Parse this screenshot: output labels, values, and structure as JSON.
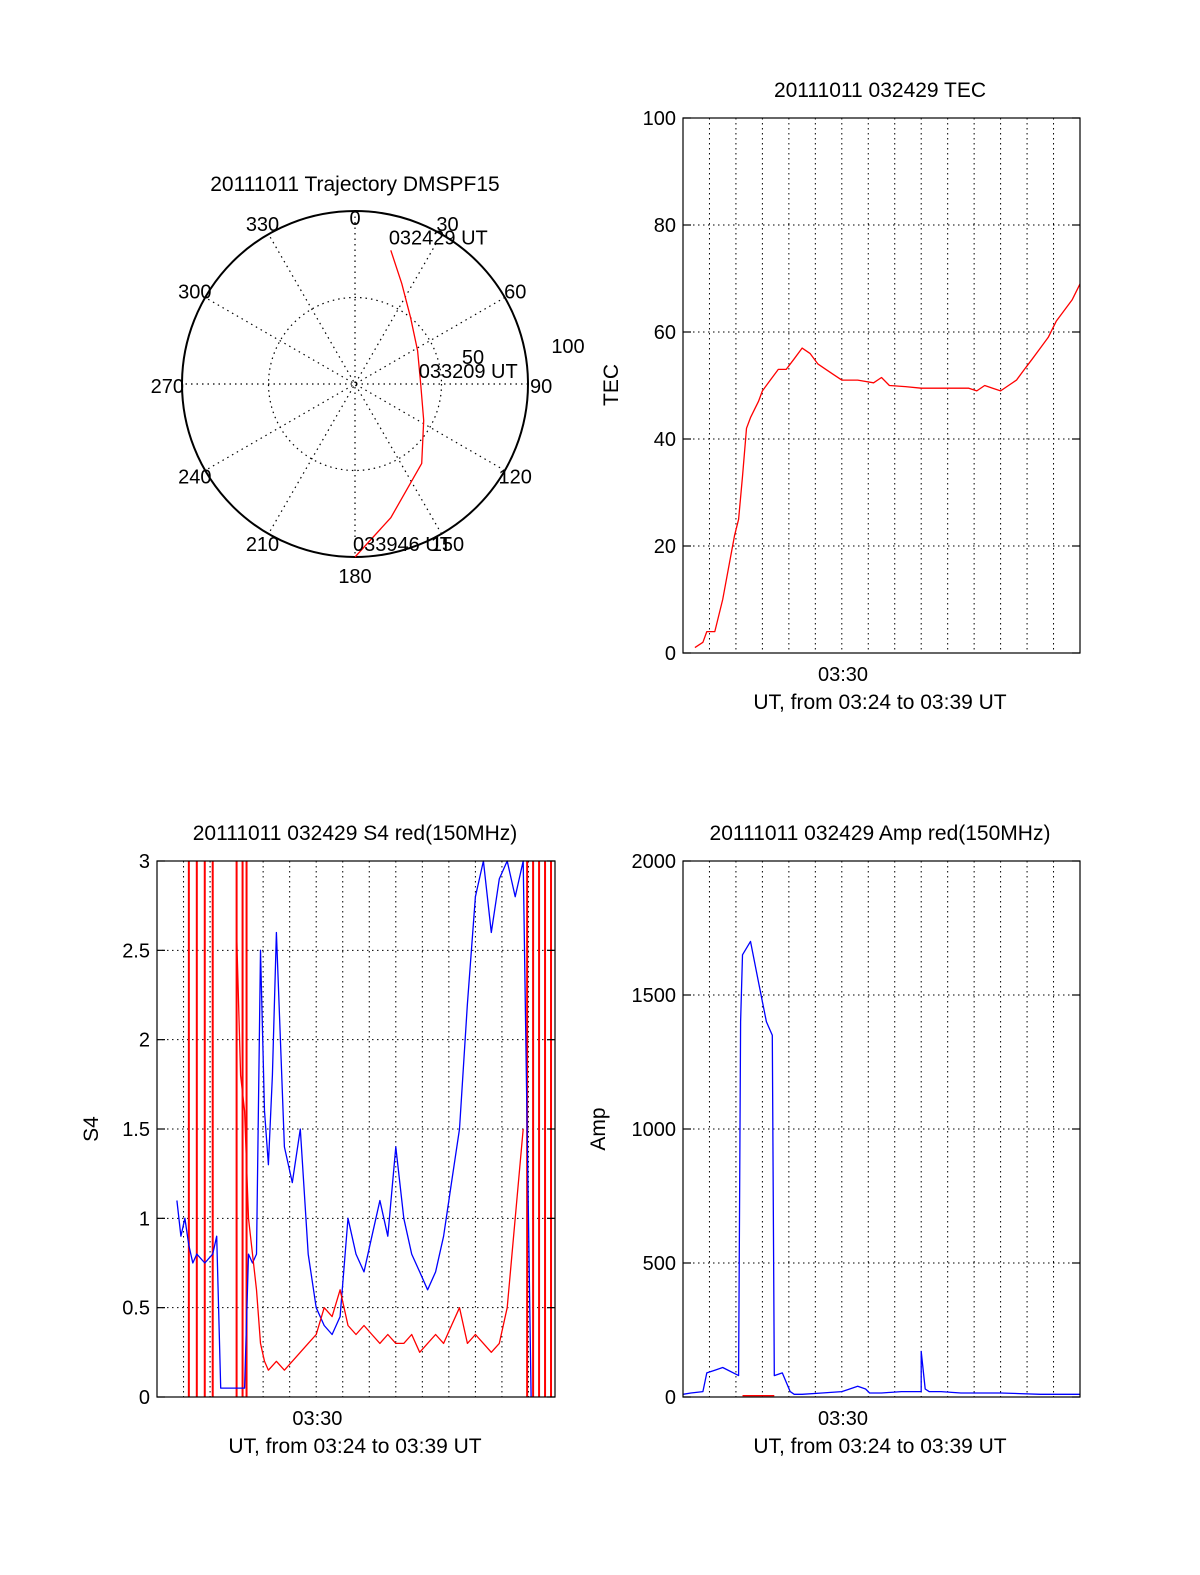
{
  "colors": {
    "red": "#ff0000",
    "blue": "#0000ff",
    "axis": "#000000",
    "grid": "#000000"
  },
  "chart_data": [
    {
      "id": "trajectory",
      "type": "polar",
      "title": "20111011 Trajectory DMSPF15",
      "azimuth_labels": [
        "0",
        "30",
        "60",
        "90",
        "120",
        "150",
        "180",
        "210",
        "240",
        "270",
        "300",
        "330"
      ],
      "radial_labels": [
        "50",
        "100"
      ],
      "rlim": [
        0,
        100
      ],
      "grid": true,
      "track_series": {
        "color": "#ff0000",
        "points": [
          {
            "az": 15,
            "r": 80
          },
          {
            "az": 25,
            "r": 64
          },
          {
            "az": 40,
            "r": 50
          },
          {
            "az": 62,
            "r": 41
          },
          {
            "az": 90,
            "r": 38
          },
          {
            "az": 118,
            "r": 45
          },
          {
            "az": 140,
            "r": 60
          },
          {
            "az": 165,
            "r": 80
          },
          {
            "az": 180,
            "r": 100
          }
        ]
      },
      "annotations": [
        {
          "text": "032429 UT",
          "az": 15,
          "r": 80
        },
        {
          "text": "033209 UT",
          "az": 90,
          "r": 38
        },
        {
          "text": "033946 UT",
          "az": 180,
          "r": 100
        }
      ]
    },
    {
      "id": "tec",
      "type": "line",
      "title": "20111011 032429 TEC",
      "xlabel": "UT, from 03:24 to 03:39 UT",
      "ylabel": "TEC",
      "xlim": [
        0,
        1
      ],
      "ylim": [
        0,
        100
      ],
      "yticks": [
        0,
        20,
        40,
        60,
        80,
        100
      ],
      "xtick_labels": [
        {
          "x": 0.403,
          "label": "03:30"
        }
      ],
      "grid": true,
      "series": [
        {
          "color": "#ff0000",
          "x": [
            0.03,
            0.05,
            0.06,
            0.08,
            0.1,
            0.12,
            0.13,
            0.14,
            0.15,
            0.16,
            0.17,
            0.19,
            0.2,
            0.22,
            0.24,
            0.26,
            0.28,
            0.3,
            0.32,
            0.34,
            0.36,
            0.38,
            0.4,
            0.44,
            0.48,
            0.5,
            0.52,
            0.56,
            0.6,
            0.64,
            0.68,
            0.72,
            0.74,
            0.76,
            0.78,
            0.8,
            0.82,
            0.84,
            0.86,
            0.88,
            0.9,
            0.92,
            0.94,
            0.96,
            0.98,
            1.0
          ],
          "y": [
            1,
            2,
            4,
            4,
            10,
            18,
            22,
            25,
            33,
            42,
            44,
            47,
            49,
            51,
            53,
            53,
            55,
            57,
            56,
            54,
            53,
            52,
            51,
            51,
            50.5,
            51.5,
            50,
            49.8,
            49.5,
            49.5,
            49.5,
            49.5,
            49,
            50,
            49.5,
            49,
            50,
            51,
            53,
            55,
            57,
            59,
            62,
            64,
            66,
            69
          ]
        }
      ]
    },
    {
      "id": "s4",
      "type": "line",
      "title": "20111011 032429 S4 red(150MHz)",
      "xlabel": "UT, from 03:24 to 03:39 UT",
      "ylabel": "S4",
      "xlim": [
        0,
        1
      ],
      "ylim": [
        0,
        3
      ],
      "yticks": [
        0,
        0.5,
        1,
        1.5,
        2,
        2.5,
        3
      ],
      "xtick_labels": [
        {
          "x": 0.403,
          "label": "03:30"
        }
      ],
      "grid": true,
      "series": [
        {
          "color": "#0000ff",
          "x": [
            0.05,
            0.06,
            0.07,
            0.08,
            0.09,
            0.1,
            0.12,
            0.14,
            0.15,
            0.16,
            0.17,
            0.18,
            0.185,
            0.19,
            0.22,
            0.23,
            0.24,
            0.25,
            0.26,
            0.27,
            0.28,
            0.29,
            0.3,
            0.32,
            0.34,
            0.36,
            0.38,
            0.4,
            0.42,
            0.44,
            0.46,
            0.48,
            0.5,
            0.52,
            0.54,
            0.56,
            0.58,
            0.6,
            0.62,
            0.64,
            0.66,
            0.68,
            0.7,
            0.72,
            0.74,
            0.76,
            0.78,
            0.8,
            0.82,
            0.84,
            0.86,
            0.88,
            0.9,
            0.92,
            0.94
          ],
          "y": [
            1.1,
            0.9,
            1.0,
            0.85,
            0.75,
            0.8,
            0.75,
            0.8,
            0.9,
            0.05,
            0.05,
            0.05,
            0.05,
            0.05,
            0.05,
            0.8,
            0.75,
            0.8,
            2.5,
            1.6,
            1.3,
            1.8,
            2.6,
            1.4,
            1.2,
            1.5,
            0.8,
            0.5,
            0.4,
            0.35,
            0.45,
            1.0,
            0.8,
            0.7,
            0.9,
            1.1,
            0.9,
            1.4,
            1.0,
            0.8,
            0.7,
            0.6,
            0.7,
            0.9,
            1.2,
            1.5,
            2.2,
            2.8,
            3.0,
            2.6,
            2.9,
            3.0,
            2.8,
            3.0,
            0.0
          ]
        },
        {
          "color": "#ff0000",
          "x": [
            0.2,
            0.21,
            0.22,
            0.23,
            0.24,
            0.25,
            0.26,
            0.27,
            0.28,
            0.3,
            0.32,
            0.34,
            0.36,
            0.38,
            0.4,
            0.42,
            0.44,
            0.46,
            0.48,
            0.5,
            0.52,
            0.54,
            0.56,
            0.58,
            0.6,
            0.62,
            0.64,
            0.66,
            0.68,
            0.7,
            0.72,
            0.74,
            0.76,
            0.78,
            0.8,
            0.82,
            0.84,
            0.86,
            0.88,
            0.9,
            0.92
          ],
          "y": [
            2.6,
            1.8,
            1.6,
            1.0,
            0.8,
            0.6,
            0.3,
            0.2,
            0.15,
            0.2,
            0.15,
            0.2,
            0.25,
            0.3,
            0.35,
            0.5,
            0.45,
            0.6,
            0.4,
            0.35,
            0.4,
            0.35,
            0.3,
            0.35,
            0.3,
            0.3,
            0.35,
            0.25,
            0.3,
            0.35,
            0.3,
            0.4,
            0.5,
            0.3,
            0.35,
            0.3,
            0.25,
            0.3,
            0.5,
            1.0,
            1.5
          ]
        }
      ],
      "red_spikes_x": [
        0.08,
        0.1,
        0.12,
        0.14,
        0.2,
        0.215,
        0.225,
        0.93,
        0.945,
        0.96,
        0.975,
        0.99
      ]
    },
    {
      "id": "amp",
      "type": "line",
      "title": "20111011 032429 Amp red(150MHz)",
      "xlabel": "UT, from 03:24 to 03:39 UT",
      "ylabel": "Amp",
      "xlim": [
        0,
        1
      ],
      "ylim": [
        0,
        2000
      ],
      "yticks": [
        0,
        500,
        1000,
        1500,
        2000
      ],
      "xtick_labels": [
        {
          "x": 0.403,
          "label": "03:30"
        }
      ],
      "grid": true,
      "series": [
        {
          "color": "#0000ff",
          "x": [
            0.0,
            0.02,
            0.05,
            0.06,
            0.08,
            0.1,
            0.14,
            0.145,
            0.15,
            0.17,
            0.19,
            0.21,
            0.225,
            0.23,
            0.25,
            0.27,
            0.28,
            0.3,
            0.35,
            0.4,
            0.42,
            0.44,
            0.46,
            0.47,
            0.5,
            0.55,
            0.6,
            0.6,
            0.61,
            0.62,
            0.65,
            0.7,
            0.8,
            0.9,
            1.0
          ],
          "y": [
            10,
            15,
            20,
            90,
            100,
            110,
            80,
            1400,
            1650,
            1700,
            1550,
            1400,
            1350,
            80,
            90,
            20,
            10,
            10,
            15,
            20,
            30,
            40,
            30,
            15,
            15,
            20,
            20,
            170,
            30,
            20,
            20,
            15,
            15,
            10,
            10
          ]
        },
        {
          "color": "#ff0000",
          "x": [
            0.15,
            0.23
          ],
          "y": [
            5,
            5
          ]
        }
      ]
    }
  ]
}
